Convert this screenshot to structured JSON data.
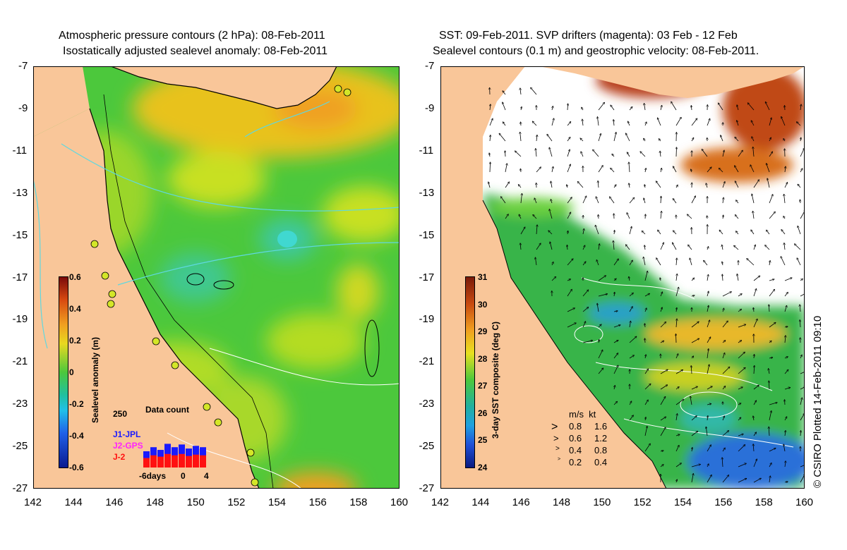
{
  "left_panel": {
    "title_line1": "Atmospheric pressure contours (2 hPa): 08-Feb-2011",
    "title_line2": "Isostatically adjusted sealevel anomaly: 08-Feb-2011",
    "colorbar": {
      "title": "Sealevel anomaly (m)",
      "ticks": [
        "0.6",
        "0.4",
        "0.2",
        "0",
        "-0.2",
        "-0.4",
        "-0.6"
      ],
      "range": [
        -0.6,
        0.6
      ]
    },
    "data_count": {
      "title": "Data count",
      "max_label": "250",
      "legend": [
        {
          "label": "J1-JPL",
          "color": "#1a1aff"
        },
        {
          "label": "J2-GPS",
          "color": "#ff22ff"
        },
        {
          "label": "J-2",
          "color": "#ff1111"
        }
      ],
      "x_labels": [
        "-6days",
        "0",
        "4"
      ],
      "bars_blue": [
        120,
        150,
        130,
        175,
        150,
        170,
        140,
        160,
        150
      ],
      "bars_red": [
        70,
        90,
        80,
        100,
        90,
        100,
        85,
        95,
        90
      ]
    }
  },
  "right_panel": {
    "title_line1": "SST: 09-Feb-2011. SVP drifters (magenta): 03 Feb - 12 Feb",
    "title_line2": "Sealevel contours (0.1 m) and geostrophic velocity: 08-Feb-2011.",
    "colorbar": {
      "title": "3-day SST composite (deg C)",
      "ticks": [
        "31",
        "30",
        "29",
        "28",
        "27",
        "26",
        "25",
        "24"
      ],
      "range": [
        24,
        31
      ]
    },
    "velocity_legend": {
      "header": "m/s  kt",
      "rows": [
        {
          "ms": "0.8",
          "kt": "1.6"
        },
        {
          "ms": "0.6",
          "kt": "1.2"
        },
        {
          "ms": "0.4",
          "kt": "0.8"
        },
        {
          "ms": "0.2",
          "kt": "0.4"
        }
      ]
    }
  },
  "axes": {
    "y_labels": [
      "-7",
      "-9",
      "-11",
      "-13",
      "-15",
      "-17",
      "-19",
      "-21",
      "-23",
      "-25",
      "-27"
    ],
    "x_labels": [
      "142",
      "144",
      "146",
      "148",
      "150",
      "152",
      "154",
      "156",
      "158",
      "160"
    ],
    "lat_range": [
      -27,
      -7
    ],
    "lon_range": [
      142,
      160
    ]
  },
  "copyright": "© CSIRO Plotted 14-Feb-2011 09:10",
  "colors": {
    "land": "#f9c699",
    "sla_mid": "#4cc83c",
    "sst_mid": "#37b44a",
    "cloud": "#ffffff"
  }
}
